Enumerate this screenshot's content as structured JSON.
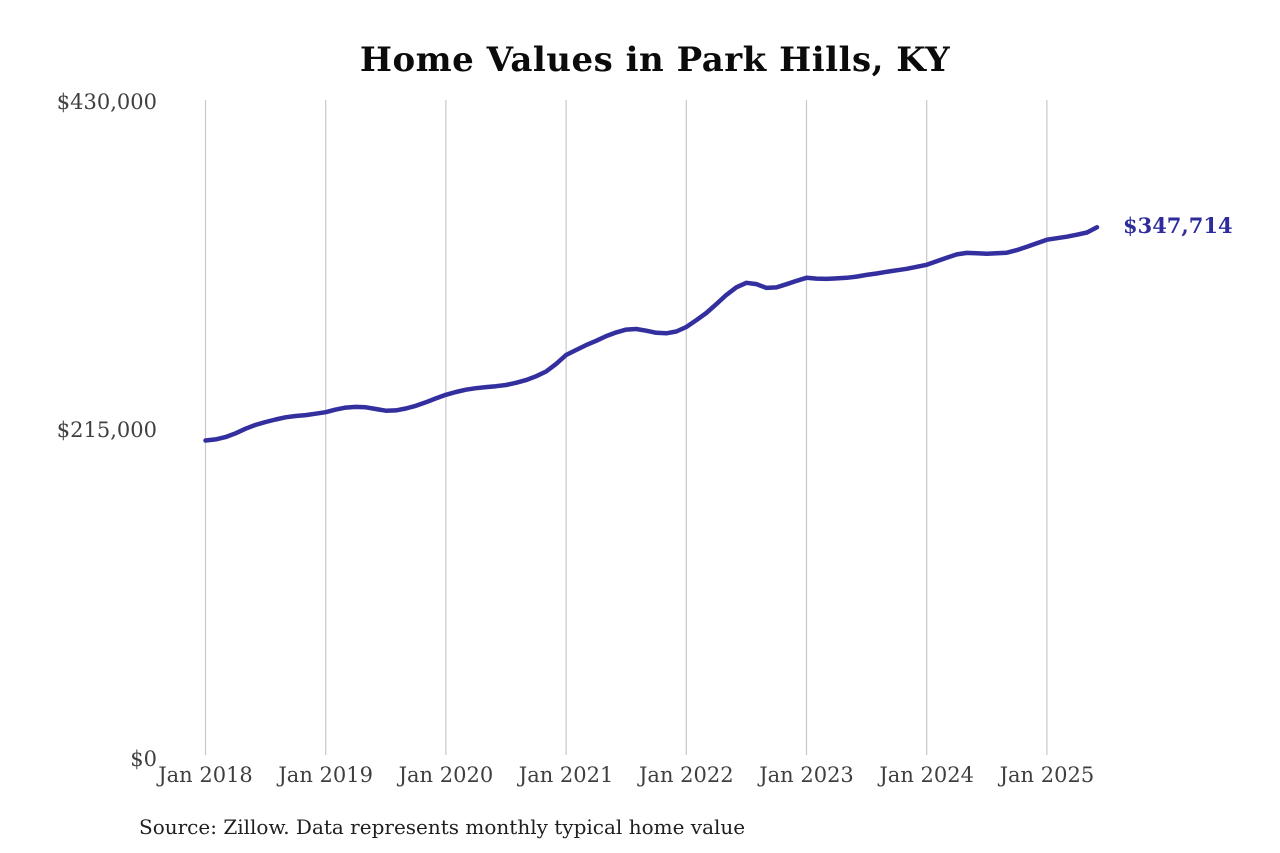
{
  "title": "Home Values in Park Hills, KY",
  "source_note": "Source: Zillow. Data represents monthly typical home value",
  "annotation": {
    "label": "$347,714",
    "value": 347714
  },
  "colors": {
    "line": "#332f9e",
    "annotation_text": "#2e2c9c",
    "grid": "#c8c8c8",
    "axis_text": "#3f3f3f",
    "title_text": "#0b0b0b",
    "background": "#ffffff"
  },
  "chart_data": {
    "type": "line",
    "title": "Home Values in Park Hills, KY",
    "xlabel": "",
    "ylabel": "",
    "ylim": [
      0,
      430000
    ],
    "grid": "vertical-only",
    "x_start": "2018-01",
    "x_end": "2025-06",
    "x_interval": "month",
    "x_tick_labels": [
      "Jan 2018",
      "Jan 2019",
      "Jan 2020",
      "Jan 2021",
      "Jan 2022",
      "Jan 2023",
      "Jan 2024",
      "Jan 2025"
    ],
    "y_ticks": [
      {
        "label": "$0",
        "value": 0
      },
      {
        "label": "$215,000",
        "value": 215000
      },
      {
        "label": "$430,000",
        "value": 430000
      }
    ],
    "series": [
      {
        "name": "Monthly typical home value",
        "final_value": 347714,
        "values": [
          208300,
          209000,
          210500,
          213000,
          216000,
          218500,
          220400,
          222000,
          223500,
          224300,
          224900,
          225800,
          226800,
          228500,
          229800,
          230300,
          230000,
          228900,
          227800,
          228000,
          229200,
          231000,
          233300,
          235800,
          238200,
          240000,
          241500,
          242500,
          243200,
          243800,
          244600,
          246000,
          247800,
          250300,
          253400,
          258400,
          264200,
          267500,
          270700,
          273500,
          276600,
          279000,
          280800,
          281200,
          280100,
          278700,
          278400,
          279600,
          282500,
          287000,
          291700,
          297500,
          303500,
          308500,
          311400,
          310600,
          308100,
          308400,
          310500,
          312700,
          314700,
          314200,
          314000,
          314300,
          314700,
          315500,
          316600,
          317500,
          318600,
          319600,
          320600,
          321900,
          323200,
          325500,
          327800,
          330000,
          331000,
          330700,
          330400,
          330700,
          331100,
          332800,
          335000,
          337300,
          339600,
          340600,
          341600,
          342900,
          344300,
          347714
        ]
      }
    ]
  }
}
